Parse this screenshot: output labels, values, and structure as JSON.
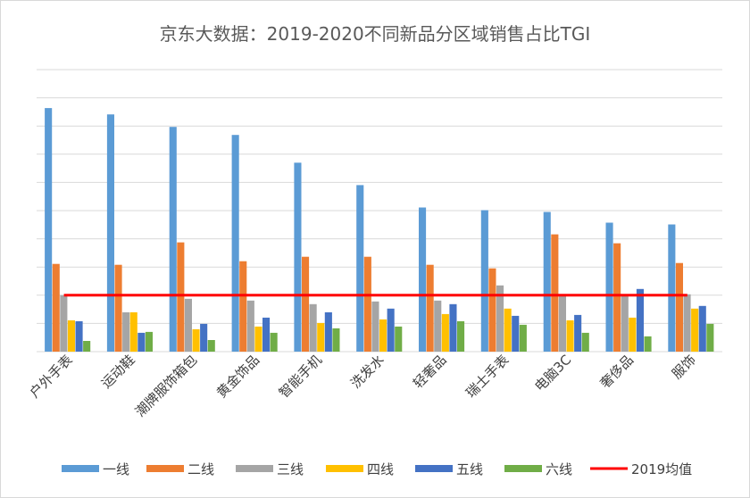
{
  "chart_data": {
    "type": "bar",
    "title": "京东大数据：2019-2020不同新品分区域销售占比TGI",
    "categories": [
      "户外手表",
      "运动鞋",
      "潮牌服饰箱包",
      "黄金饰品",
      "智能手机",
      "洗发水",
      "轻奢品",
      "瑞士手表",
      "电脑3C",
      "奢侈品",
      "服饰"
    ],
    "series": [
      {
        "name": "一线",
        "color": "#5b9bd5",
        "values": [
          272,
          265,
          251,
          242,
          211,
          186,
          161,
          158,
          156,
          144,
          142
        ]
      },
      {
        "name": "二线",
        "color": "#ed7d31",
        "values": [
          98,
          97,
          122,
          101,
          106,
          106,
          97,
          93,
          131,
          121,
          99
        ]
      },
      {
        "name": "三线",
        "color": "#a5a5a5",
        "values": [
          63,
          44,
          59,
          57,
          53,
          56,
          57,
          74,
          63,
          64,
          64
        ]
      },
      {
        "name": "四线",
        "color": "#ffc000",
        "values": [
          35,
          44,
          25,
          28,
          32,
          36,
          42,
          48,
          35,
          38,
          48
        ]
      },
      {
        "name": "五线",
        "color": "#4472c4",
        "values": [
          34,
          21,
          31,
          38,
          44,
          48,
          53,
          40,
          41,
          70,
          51
        ]
      },
      {
        "name": "六线",
        "color": "#70ad47",
        "values": [
          12,
          22,
          13,
          21,
          26,
          28,
          34,
          30,
          21,
          17,
          31
        ]
      }
    ],
    "reference_line": {
      "name": "2019均值",
      "color": "#ff0000",
      "value": 63
    },
    "ylim": [
      0,
      315
    ],
    "y_gridline_step": 31.5,
    "y_tick_labels_shown": false,
    "grid": true,
    "legend_position": "bottom"
  }
}
